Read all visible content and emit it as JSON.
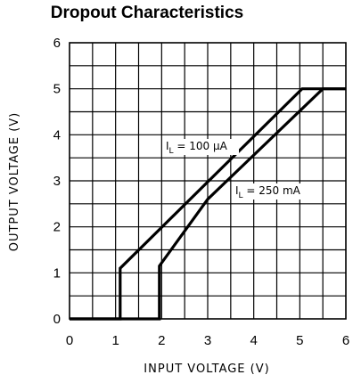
{
  "chart_data": {
    "type": "line",
    "title": "Dropout Characteristics",
    "xlabel": "INPUT VOLTAGE (V)",
    "ylabel": "OUTPUT VOLTAGE (V)",
    "xlim": [
      0,
      6
    ],
    "ylim": [
      0,
      6
    ],
    "x_ticks": [
      "0",
      "1",
      "2",
      "3",
      "4",
      "5",
      "6"
    ],
    "y_ticks": [
      "0",
      "1",
      "2",
      "3",
      "4",
      "5",
      "6"
    ],
    "grid": true,
    "series": [
      {
        "name": "I_L = 100 µA",
        "label_parts": {
          "main": "I",
          "sub": "L",
          "rest": " = 100 µA"
        },
        "points": [
          [
            0,
            0
          ],
          [
            1.1,
            0
          ],
          [
            1.1,
            1.1
          ],
          [
            5.05,
            5.0
          ],
          [
            6,
            5.0
          ]
        ]
      },
      {
        "name": "I_L = 250 mA",
        "label_parts": {
          "main": "I",
          "sub": "L",
          "rest": " = 250 mA"
        },
        "points": [
          [
            0,
            0
          ],
          [
            1.95,
            0
          ],
          [
            1.95,
            1.15
          ],
          [
            3.0,
            2.6
          ],
          [
            5.5,
            5.0
          ],
          [
            6,
            5.0
          ]
        ]
      }
    ]
  }
}
